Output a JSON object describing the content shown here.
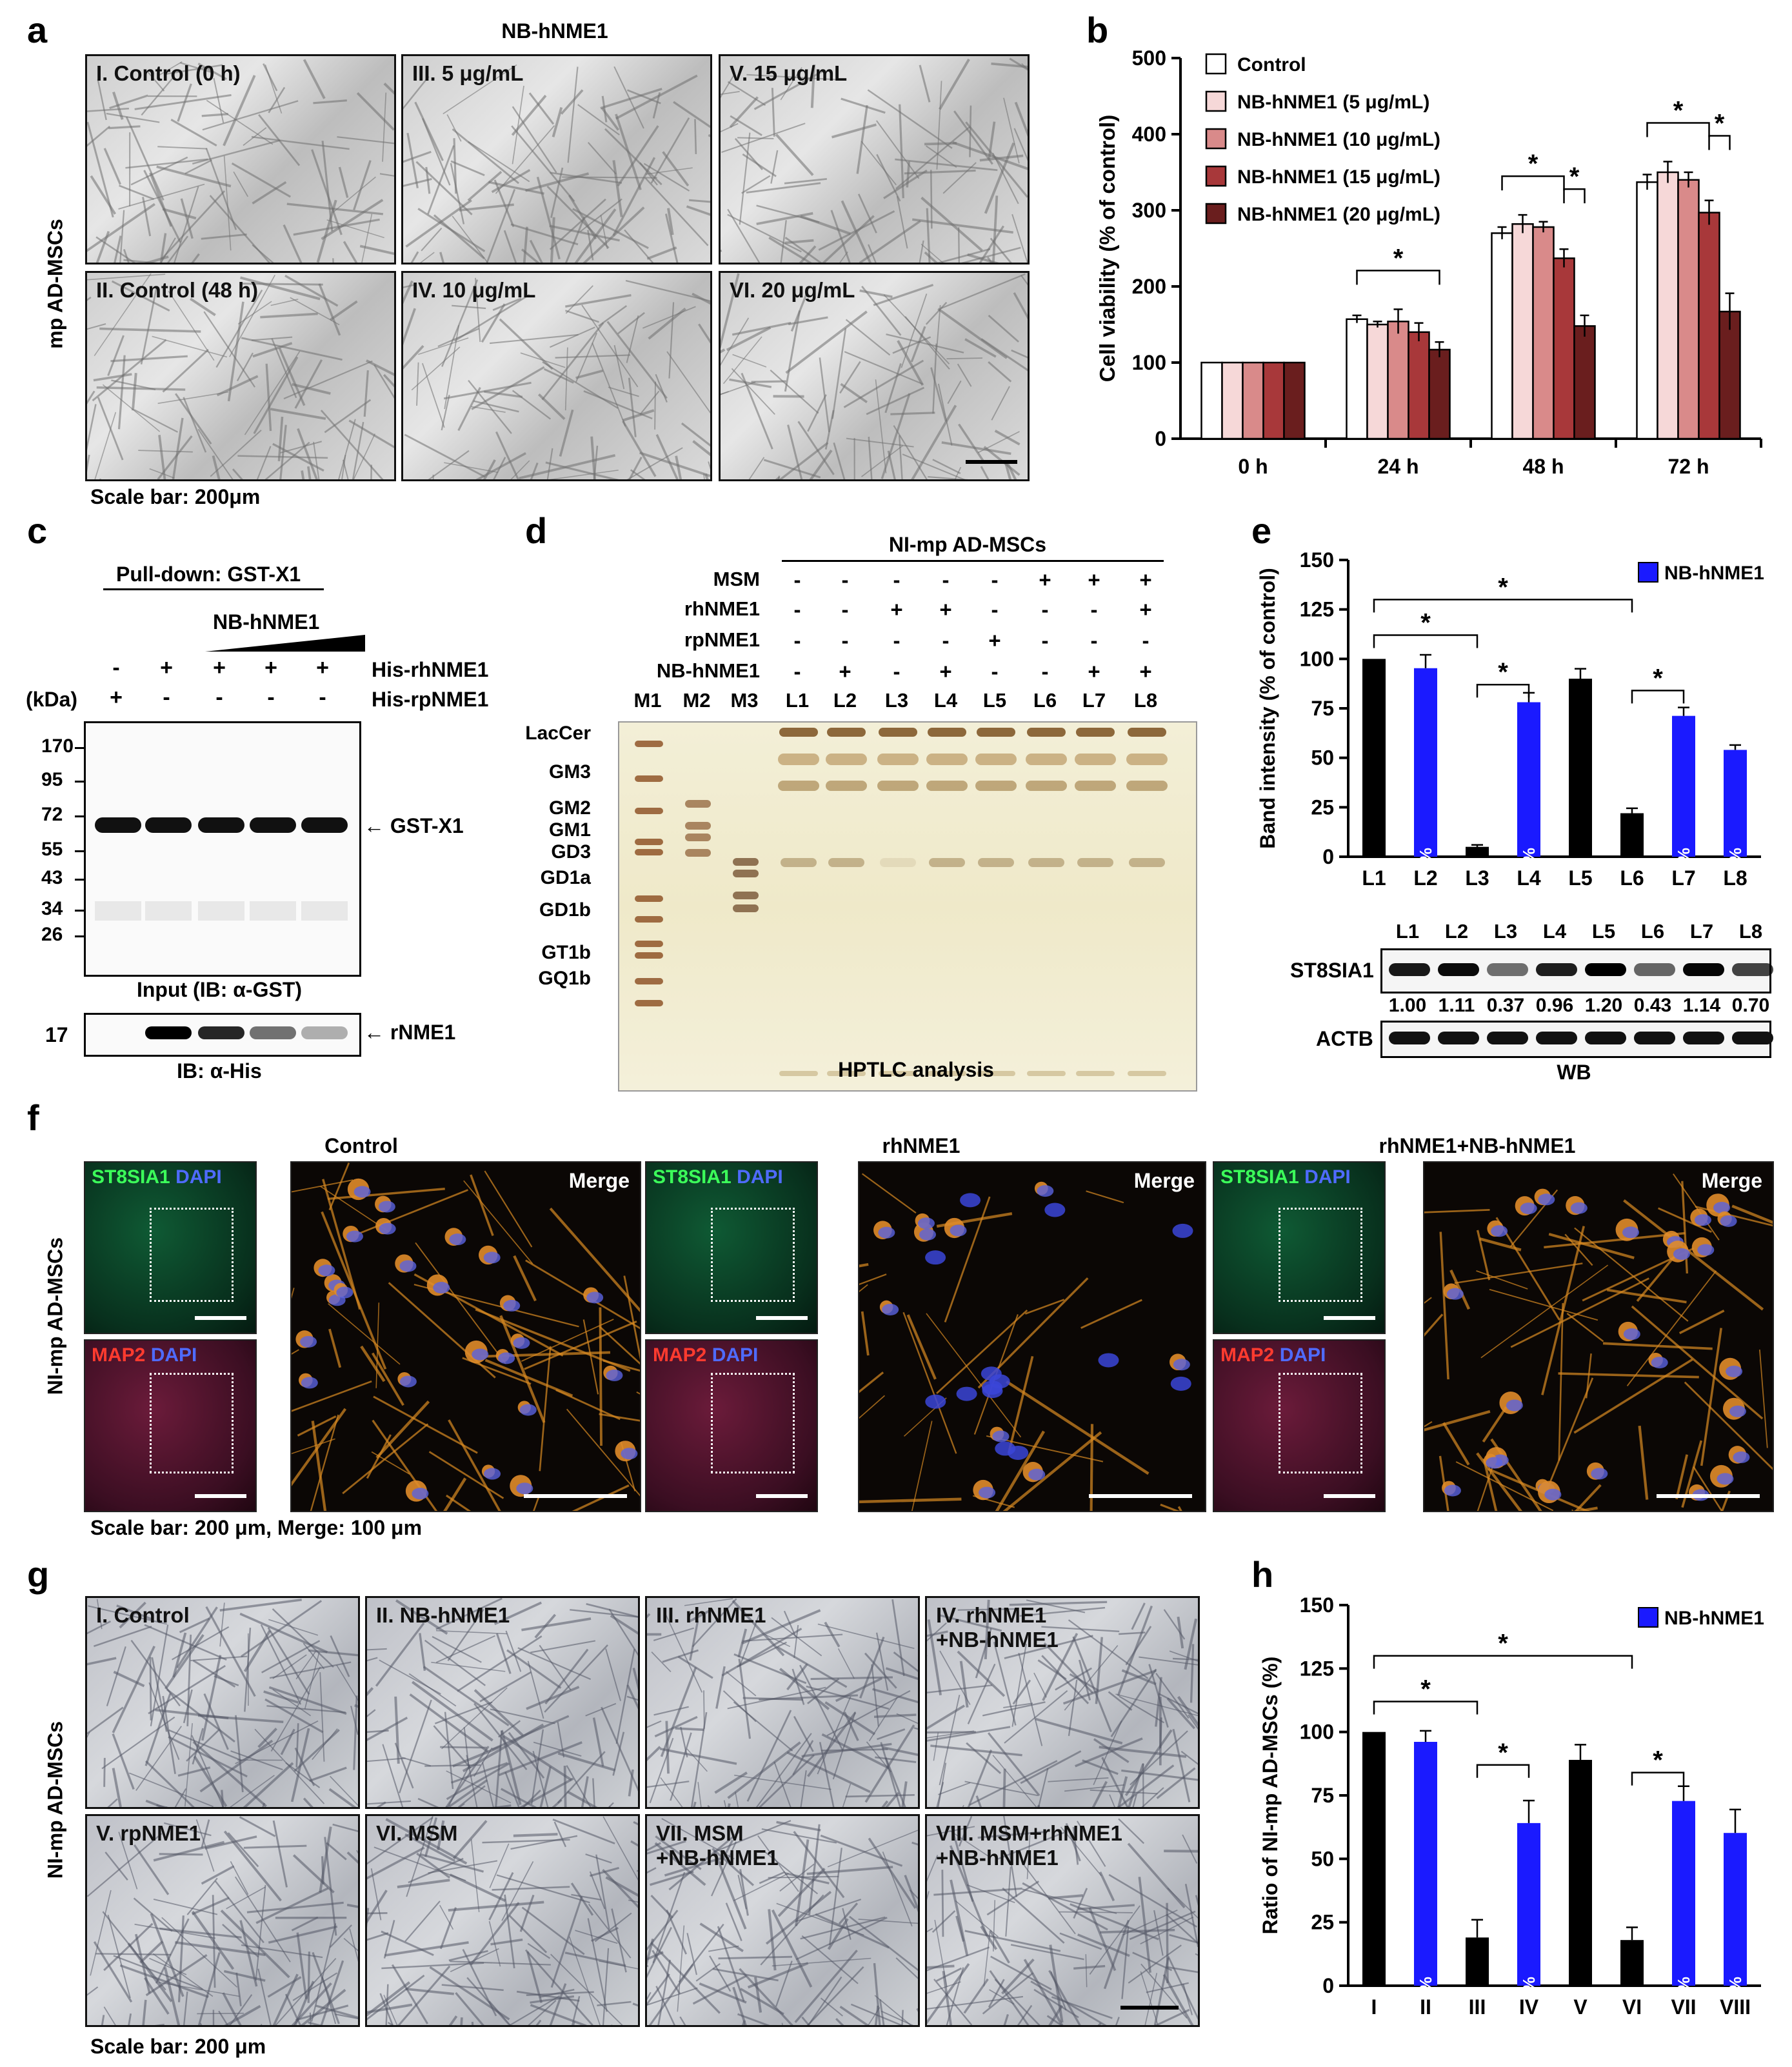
{
  "panel_letters": {
    "a": "a",
    "b": "b",
    "c": "c",
    "d": "d",
    "e": "e",
    "f": "f",
    "g": "g",
    "h": "h"
  },
  "panel_a": {
    "title": "NB-hNME1",
    "ylabel": "mp AD-MSCs",
    "images": [
      "I. Control (0 h)",
      "III. 5 μg/mL",
      "V. 15 μg/mL",
      "II. Control (48 h)",
      "IV. 10 μg/mL",
      "VI. 20 μg/mL"
    ],
    "scale": "Scale bar: 200μm"
  },
  "panel_c": {
    "pulldown": "Pull-down: GST-X1",
    "nb": "NB-hNME1",
    "kda": "(kDa)",
    "row1_label": "His-rhNME1",
    "row2_label": "His-rpNME1",
    "row1": [
      "-",
      "+",
      "+",
      "+",
      "+"
    ],
    "row2": [
      "+",
      "-",
      "-",
      "-",
      "-"
    ],
    "markers": [
      "170",
      "95",
      "72",
      "55",
      "43",
      "34",
      "26"
    ],
    "band_label": "GST-X1",
    "input_label": "Input (IB: α-GST)",
    "his_marker": "17",
    "his_band": "rNME1",
    "ib_label": "IB:  α-His",
    "his_intensity": [
      0,
      1.0,
      0.85,
      0.55,
      0.3
    ]
  },
  "panel_d": {
    "header": "NI-mp AD-MSCs",
    "rows": [
      {
        "label": "MSM",
        "v": [
          "-",
          "-",
          "-",
          "-",
          "-",
          "+",
          "+",
          "+"
        ]
      },
      {
        "label": "rhNME1",
        "v": [
          "-",
          "-",
          "+",
          "+",
          "-",
          "-",
          "-",
          "+"
        ]
      },
      {
        "label": "rpNME1",
        "v": [
          "-",
          "-",
          "-",
          "-",
          "+",
          "-",
          "-",
          "-"
        ]
      },
      {
        "label": "NB-hNME1",
        "v": [
          "-",
          "+",
          "-",
          "+",
          "-",
          "-",
          "+",
          "+"
        ]
      }
    ],
    "lanes": [
      "M1",
      "M2",
      "M3",
      "L1",
      "L2",
      "L3",
      "L4",
      "L5",
      "L6",
      "L7",
      "L8"
    ],
    "species": [
      "LacCer",
      "GM3",
      "GM2",
      "GM1",
      "GD3",
      "GD1a",
      "GD1b",
      "GT1b",
      "GQ1b"
    ],
    "caption": "HPTLC analysis"
  },
  "panel_e_wb": {
    "lanes": [
      "L1",
      "L2",
      "L3",
      "L4",
      "L5",
      "L6",
      "L7",
      "L8"
    ],
    "protein1": "ST8SIA1",
    "quant": [
      "1.00",
      "1.11",
      "0.37",
      "0.96",
      "1.20",
      "0.43",
      "1.14",
      "0.70"
    ],
    "protein2": "ACTB",
    "caption": "WB"
  },
  "panel_f": {
    "groups": [
      "Control",
      "rhNME1",
      "rhNME1+NB-hNME1"
    ],
    "ylabel": "NI-mp AD-MSCs",
    "st_label": "ST8SIA1",
    "map_label": "MAP2",
    "dapi": "DAPI",
    "merge": "Merge",
    "scale": "Scale bar: 200 μm,  Merge: 100 μm"
  },
  "panel_g": {
    "ylabel": "NI-mp AD-MSCs",
    "images": [
      "I. Control",
      "II. NB-hNME1",
      "III. rhNME1",
      "IV. rhNME1\n+NB-hNME1",
      "V. rpNME1",
      "VI. MSM",
      "VII. MSM\n+NB-hNME1",
      "VIII. MSM+rhNME1\n+NB-hNME1"
    ],
    "scale": "Scale bar: 200 μm"
  },
  "chart_data": [
    {
      "panel": "b",
      "type": "bar",
      "categories": [
        "0 h",
        "24 h",
        "48 h",
        "72 h"
      ],
      "ylabel": "Cell viability (% of control)",
      "ylim": [
        0,
        500
      ],
      "yticks": [
        0,
        100,
        200,
        300,
        400,
        500
      ],
      "legend_position": "top-left",
      "series": [
        {
          "name": "Control",
          "color": "#ffffff",
          "values": [
            100,
            157,
            270,
            337
          ],
          "err": [
            0,
            5,
            8,
            10
          ]
        },
        {
          "name": "NB-hNME1  (5 μg/mL)",
          "color": "#f6d8d8",
          "values": [
            100,
            150,
            282,
            350
          ],
          "err": [
            0,
            4,
            12,
            14
          ]
        },
        {
          "name": "NB-hNME1  (10 μg/mL)",
          "color": "#d98a8a",
          "values": [
            100,
            154,
            278,
            340
          ],
          "err": [
            0,
            16,
            7,
            10
          ]
        },
        {
          "name": "NB-hNME1  (15 μg/mL)",
          "color": "#a8383a",
          "values": [
            100,
            140,
            237,
            297
          ],
          "err": [
            0,
            12,
            12,
            16
          ]
        },
        {
          "name": "NB-hNME1  (20 μg/mL)",
          "color": "#6a1e1e",
          "values": [
            100,
            117,
            148,
            167
          ],
          "err": [
            0,
            10,
            14,
            24
          ]
        }
      ],
      "significance": [
        {
          "cat": "24 h",
          "from": 0,
          "to": 4,
          "label": "*"
        },
        {
          "cat": "48 h",
          "from": 0,
          "to": 3,
          "label": "*"
        },
        {
          "cat": "48 h",
          "from": 3,
          "to": 4,
          "label": "*"
        },
        {
          "cat": "72 h",
          "from": 0,
          "to": 3,
          "label": "*"
        },
        {
          "cat": "72 h",
          "from": 3,
          "to": 4,
          "label": "*"
        }
      ]
    },
    {
      "panel": "e",
      "type": "bar",
      "categories": [
        "L1",
        "L2",
        "L3",
        "L4",
        "L5",
        "L6",
        "L7",
        "L8"
      ],
      "ylabel": "Band intensity (% of control)",
      "ylim": [
        0,
        150
      ],
      "yticks": [
        0,
        25,
        50,
        75,
        100,
        125,
        150
      ],
      "values": [
        100,
        95.3,
        5,
        78.1,
        90,
        22,
        71.2,
        54
      ],
      "errors": [
        0,
        6.76,
        1,
        4.77,
        5,
        2.5,
        4.26,
        2.44
      ],
      "colors": [
        "#000000",
        "#1a1aff",
        "#000000",
        "#1a1aff",
        "#000000",
        "#000000",
        "#1a1aff",
        "#1a1aff"
      ],
      "bar_labels": [
        "",
        "95.3±6.76%",
        "",
        "78.1±4.77%",
        "",
        "",
        "71.2±4.26%",
        "54±2.44%"
      ],
      "legend": "NB-hNME1",
      "significance": [
        [
          0,
          2
        ],
        [
          0,
          5
        ],
        [
          2,
          3
        ],
        [
          5,
          6
        ]
      ]
    },
    {
      "panel": "h",
      "type": "bar",
      "categories": [
        "I",
        "II",
        "III",
        "IV",
        "V",
        "VI",
        "VII",
        "VIII"
      ],
      "ylabel": "Ratio of NI-mp AD-MSCs (%)",
      "ylim": [
        0,
        150
      ],
      "yticks": [
        0,
        25,
        50,
        75,
        100,
        125,
        150
      ],
      "values": [
        100,
        96.1,
        19,
        64.1,
        89,
        18,
        72.8,
        60.2
      ],
      "errors": [
        0,
        4.37,
        7,
        8.86,
        6,
        5,
        5.83,
        9.25
      ],
      "colors": [
        "#000000",
        "#1a1aff",
        "#000000",
        "#1a1aff",
        "#000000",
        "#000000",
        "#1a1aff",
        "#1a1aff"
      ],
      "bar_labels": [
        "",
        "96.1±4.37%",
        "",
        "64.1±8.86%",
        "",
        "",
        "72.8±5.83%",
        "60.2±9.25%"
      ],
      "legend": "NB-hNME1",
      "significance": [
        [
          0,
          2
        ],
        [
          0,
          5
        ],
        [
          2,
          3
        ],
        [
          5,
          6
        ]
      ]
    }
  ]
}
